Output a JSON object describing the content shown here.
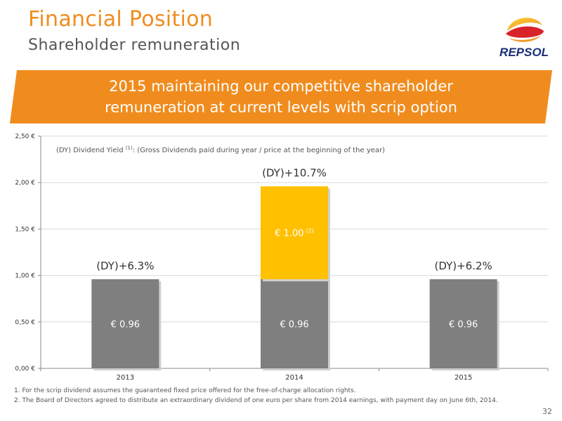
{
  "header": {
    "title": "Financial Position",
    "subtitle": "Shareholder remuneration",
    "logo_text": "REPSOL"
  },
  "banner": {
    "line1": "2015 maintaining our competitive shareholder",
    "line2": "remuneration at current levels with scrip option"
  },
  "colors": {
    "accent_orange": "#f08c1e",
    "bar_gray": "#7f7f7f",
    "bar_yellow": "#ffc000",
    "logo_red": "#d8232a",
    "logo_navy": "#1a2f7a"
  },
  "chart_data": {
    "type": "bar",
    "stacked": true,
    "categories": [
      "2013",
      "2014",
      "2015"
    ],
    "series": [
      {
        "name": "",
        "values": [
          0.96,
          0.96,
          0.96
        ],
        "labels": [
          "€ 0.96",
          "€ 0.96",
          "€ 0.96"
        ]
      },
      {
        "name": "",
        "values": [
          0,
          1.0,
          0
        ],
        "labels": [
          "",
          "€ 1.00",
          ""
        ],
        "label_sup": [
          "",
          "(2)",
          ""
        ]
      }
    ],
    "top_labels": [
      "(DY)+6.3%",
      "(DY)+10.7%",
      "(DY)+6.2%"
    ],
    "ylim": [
      0,
      2.5
    ],
    "yticks": [
      0,
      0.5,
      1.0,
      1.5,
      2.0,
      2.5
    ],
    "ytick_labels": [
      "0,00 €",
      "0,50 €",
      "1,00 €",
      "1,50 €",
      "2,00 €",
      "2,50 €"
    ],
    "grid": true,
    "note": {
      "prefix": "(DY) Dividend Yield",
      "sup": "(1)",
      "suffix": ":  (Gross Dividends paid during year / price at the beginning of the year)"
    }
  },
  "footnotes": [
    "1. For the scrip dividend assumes the guaranteed  fixed price offered for the free-of-charge allocation rights.",
    "2. The Board of Directors agreed to distribute an extraordinary dividend of one euro per share from 2014 earnings, with payment day on June 6th, 2014."
  ],
  "page_number": "32"
}
